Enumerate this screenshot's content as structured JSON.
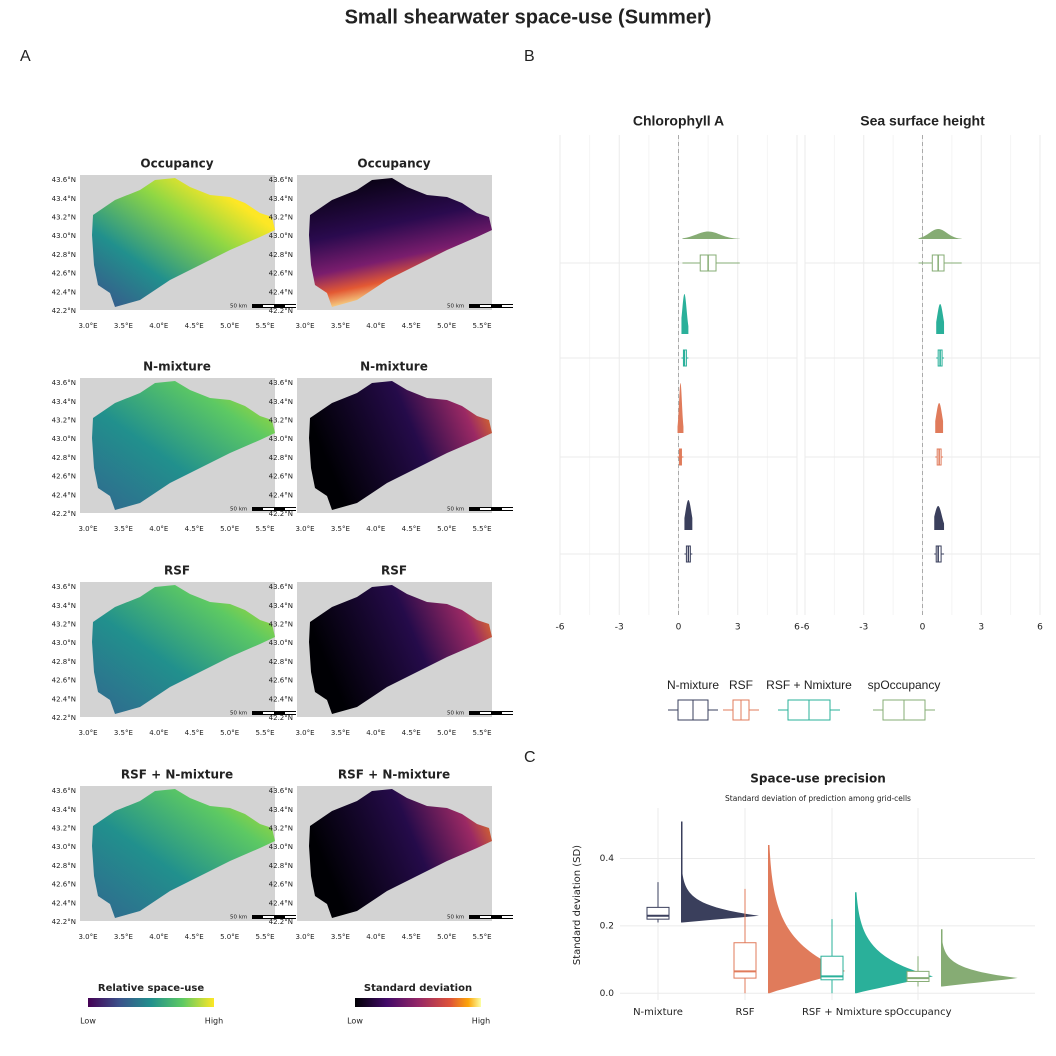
{
  "title": "Small shearwater space-use (Summer)",
  "panel_labels": [
    "A",
    "B",
    "C"
  ],
  "maps": {
    "rows": [
      [
        "Occupancy",
        "Occupancy"
      ],
      [
        "N-mixture",
        "N-mixture"
      ],
      [
        "RSF",
        "RSF"
      ],
      [
        "RSF + N-mixture",
        "RSF + N-mixture"
      ]
    ],
    "lat_ticks": [
      "42.2°N",
      "42.4°N",
      "42.6°N",
      "42.8°N",
      "43.0°N",
      "43.2°N",
      "43.4°N",
      "43.6°N"
    ],
    "lon_ticks": [
      "3.0°E",
      "3.5°E",
      "4.0°E",
      "4.5°E",
      "5.0°E",
      "5.5°E"
    ],
    "scale_label": "50 km",
    "legends": [
      {
        "title": "Relative space-use",
        "low": "Low",
        "high": "High"
      },
      {
        "title": "Standard deviation",
        "low": "Low",
        "high": "High"
      }
    ]
  },
  "chart_data": [
    {
      "type": "hboxplot",
      "facets": [
        "Chlorophyll A",
        "Sea surface height"
      ],
      "xlim": [
        -6,
        6
      ],
      "xticks": [
        -6,
        -3,
        0,
        3,
        6
      ],
      "grid": true,
      "legend_position": "bottom",
      "series": [
        {
          "name": "N-mixture",
          "color": "#3a3f5c",
          "values": [
            [
              0.3,
              0.4,
              0.5,
              0.6,
              0.7
            ],
            [
              0.6,
              0.7,
              0.8,
              0.95,
              1.1
            ]
          ]
        },
        {
          "name": "RSF",
          "color": "#e07b5b",
          "values": [
            [
              -0.05,
              0.05,
              0.1,
              0.15,
              0.25
            ],
            [
              0.65,
              0.75,
              0.85,
              0.95,
              1.05
            ]
          ]
        },
        {
          "name": "RSF + Nmixture",
          "color": "#2ab09a",
          "values": [
            [
              0.15,
              0.25,
              0.3,
              0.4,
              0.5
            ],
            [
              0.7,
              0.8,
              0.9,
              1.0,
              1.1
            ]
          ]
        },
        {
          "name": "spOccupancy",
          "color": "#86ac74",
          "values": [
            [
              0.2,
              1.1,
              1.5,
              1.9,
              3.1
            ],
            [
              -0.2,
              0.5,
              0.8,
              1.1,
              2.0
            ]
          ]
        }
      ]
    },
    {
      "type": "boxplot",
      "title": "Space-use precision",
      "subtitle": "Standard deviation of prediction among grid-cells",
      "ylabel": "Standard deviation (SD)",
      "categories": [
        "N-mixture",
        "RSF",
        "RSF + Nmixture",
        "spOccupancy"
      ],
      "colors": [
        "#3a3f5c",
        "#e07b5b",
        "#2ab09a",
        "#86ac74"
      ],
      "values": [
        [
          0.21,
          0.22,
          0.23,
          0.255,
          0.33
        ],
        [
          0.0,
          0.045,
          0.065,
          0.15,
          0.31
        ],
        [
          0.0,
          0.04,
          0.05,
          0.11,
          0.22
        ],
        [
          0.02,
          0.035,
          0.045,
          0.065,
          0.11
        ]
      ],
      "distribution_max": [
        0.51,
        0.44,
        0.3,
        0.19
      ],
      "ylim": [
        -0.02,
        0.55
      ],
      "yticks": [
        {
          "value": 0,
          "label": "0.0"
        },
        0.2,
        0.4
      ],
      "grid": true
    }
  ]
}
